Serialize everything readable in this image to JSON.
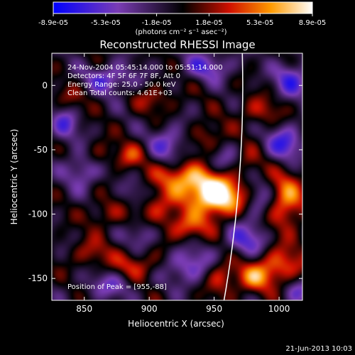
{
  "chart_data": {
    "type": "heatmap",
    "title": "Reconstructed RHESSI Image",
    "xlabel": "Heliocentric X (arcsec)",
    "ylabel": "Heliocentric Y (arcsec)",
    "xlim": [
      825,
      1018
    ],
    "ylim": [
      -167,
      25
    ],
    "x_ticks": [
      850,
      900,
      950,
      1000
    ],
    "y_ticks": [
      0,
      -50,
      -100,
      -150
    ],
    "colorbar": {
      "tick_labels": [
        "-8.9e-05",
        "-5.3e-05",
        "-1.8e-05",
        "1.8e-05",
        "5.3e-05",
        "8.9e-05"
      ],
      "tick_values": [
        -8.9e-05,
        -5.3e-05,
        -1.8e-05,
        1.8e-05,
        5.3e-05,
        8.9e-05
      ],
      "range": [
        -8.9e-05,
        8.9e-05
      ],
      "units": "(photons cm⁻² s⁻¹ asec⁻²)"
    },
    "annotations": [
      "24-Nov-2004 05:45:14.000 to 05:51:14.000",
      "Detectors: 4F 5F 6F 7F 8F, Att 0",
      "Energy Range: 25.0 - 50.0 keV",
      "Clean     Total counts: 4.61E+03"
    ],
    "peak_label": "Position of Peak = [955,-88]",
    "peak": {
      "x": 955,
      "y": -88
    },
    "sources": [
      {
        "x": 955,
        "y": -88,
        "amp": 1.0,
        "sx": 12,
        "sy": 10
      },
      {
        "x": 940,
        "y": -80,
        "amp": 0.7,
        "sx": 14,
        "sy": 10
      },
      {
        "x": 925,
        "y": -70,
        "amp": 0.55,
        "sx": 16,
        "sy": 8
      },
      {
        "x": 905,
        "y": -95,
        "amp": 0.45,
        "sx": 12,
        "sy": 10
      },
      {
        "x": 930,
        "y": -110,
        "amp": 0.55,
        "sx": 12,
        "sy": 8
      },
      {
        "x": 1005,
        "y": -90,
        "amp": 0.7,
        "sx": 10,
        "sy": 16
      },
      {
        "x": 1000,
        "y": -140,
        "amp": 0.6,
        "sx": 14,
        "sy": 10
      },
      {
        "x": 980,
        "y": -150,
        "amp": 0.55,
        "sx": 10,
        "sy": 8
      },
      {
        "x": 955,
        "y": -148,
        "amp": 0.5,
        "sx": 8,
        "sy": 10
      },
      {
        "x": 890,
        "y": -140,
        "amp": 0.45,
        "sx": 14,
        "sy": 8
      },
      {
        "x": 855,
        "y": -130,
        "amp": 0.35,
        "sx": 10,
        "sy": 8
      },
      {
        "x": 865,
        "y": -100,
        "amp": 0.3,
        "sx": 10,
        "sy": 8
      },
      {
        "x": 885,
        "y": -55,
        "amp": 0.45,
        "sx": 8,
        "sy": 7
      },
      {
        "x": 860,
        "y": -55,
        "amp": 0.35,
        "sx": 8,
        "sy": 8
      },
      {
        "x": 945,
        "y": -40,
        "amp": 0.35,
        "sx": 9,
        "sy": 8
      },
      {
        "x": 985,
        "y": -20,
        "amp": 0.35,
        "sx": 12,
        "sy": 8
      },
      {
        "x": 905,
        "y": -10,
        "amp": 0.3,
        "sx": 12,
        "sy": 8
      },
      {
        "x": 840,
        "y": -10,
        "amp": 0.25,
        "sx": 10,
        "sy": 8
      },
      {
        "x": 975,
        "y": -60,
        "amp": 0.3,
        "sx": 8,
        "sy": 8
      },
      {
        "x": 870,
        "y": 5,
        "amp": -0.55,
        "sx": 14,
        "sy": 8
      },
      {
        "x": 945,
        "y": 15,
        "amp": -0.5,
        "sx": 14,
        "sy": 8
      },
      {
        "x": 1005,
        "y": -45,
        "amp": -0.65,
        "sx": 10,
        "sy": 10
      },
      {
        "x": 1010,
        "y": 5,
        "amp": -0.6,
        "sx": 10,
        "sy": 10
      },
      {
        "x": 915,
        "y": -45,
        "amp": -0.5,
        "sx": 10,
        "sy": 10
      },
      {
        "x": 850,
        "y": -65,
        "amp": -0.55,
        "sx": 10,
        "sy": 10
      },
      {
        "x": 835,
        "y": -30,
        "amp": -0.5,
        "sx": 8,
        "sy": 10
      },
      {
        "x": 930,
        "y": -140,
        "amp": -0.55,
        "sx": 14,
        "sy": 10
      },
      {
        "x": 895,
        "y": -115,
        "amp": -0.45,
        "sx": 8,
        "sy": 8
      },
      {
        "x": 870,
        "y": -155,
        "amp": -0.4,
        "sx": 14,
        "sy": 8
      },
      {
        "x": 975,
        "y": -120,
        "amp": -0.55,
        "sx": 12,
        "sy": 10
      },
      {
        "x": 985,
        "y": -90,
        "amp": -0.4,
        "sx": 8,
        "sy": 10
      },
      {
        "x": 955,
        "y": -60,
        "amp": -0.35,
        "sx": 10,
        "sy": 8
      },
      {
        "x": 890,
        "y": -85,
        "amp": -0.3,
        "sx": 8,
        "sy": 8
      },
      {
        "x": 1015,
        "y": -160,
        "amp": -0.4,
        "sx": 8,
        "sy": 8
      }
    ]
  },
  "footer": {
    "date": "21-Jun-2013 10:03"
  }
}
